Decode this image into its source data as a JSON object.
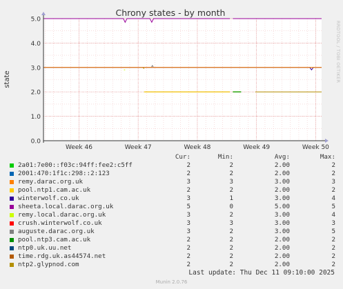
{
  "title": "Chrony states - by month",
  "watermark": "RRDTOOL / TOBI OETIKER",
  "footer": {
    "last_update": "Last update: Thu Dec 11 09:10:00 2025",
    "version": "Munin 2.0.76"
  },
  "legend": {
    "headers": {
      "cur": "Cur:",
      "min": "Min:",
      "avg": "Avg:",
      "max": "Max:"
    },
    "rows": [
      {
        "name": "2a01:7e00::f03c:94ff:fee2:c5ff",
        "color": "#00cc00",
        "cur": "2",
        "min": "2",
        "avg": "2.00",
        "max": "2"
      },
      {
        "name": "2001:470:1f1c:298::2:123",
        "color": "#0066b3",
        "cur": "2",
        "min": "2",
        "avg": "2.00",
        "max": "2"
      },
      {
        "name": "remy.darac.org.uk",
        "color": "#ff8000",
        "cur": "3",
        "min": "3",
        "avg": "3.00",
        "max": "3"
      },
      {
        "name": "pool.ntp1.cam.ac.uk",
        "color": "#ffcc00",
        "cur": "2",
        "min": "2",
        "avg": "2.00",
        "max": "2"
      },
      {
        "name": "winterwolf.co.uk",
        "color": "#330099",
        "cur": "3",
        "min": "1",
        "avg": "3.00",
        "max": "4"
      },
      {
        "name": "sheeta.local.darac.org.uk",
        "color": "#990099",
        "cur": "5",
        "min": "0",
        "avg": "5.00",
        "max": "5"
      },
      {
        "name": "remy.local.darac.org.uk",
        "color": "#ccff00",
        "cur": "3",
        "min": "2",
        "avg": "3.00",
        "max": "4"
      },
      {
        "name": "crush.winterwolf.co.uk",
        "color": "#ff0000",
        "cur": "3",
        "min": "3",
        "avg": "3.00",
        "max": "3"
      },
      {
        "name": "auguste.darac.org.uk",
        "color": "#808080",
        "cur": "3",
        "min": "2",
        "avg": "3.00",
        "max": "5"
      },
      {
        "name": "pool.ntp3.cam.ac.uk",
        "color": "#008f00",
        "cur": "2",
        "min": "2",
        "avg": "2.00",
        "max": "2"
      },
      {
        "name": "ntp0.uk.uu.net",
        "color": "#00487d",
        "cur": "2",
        "min": "2",
        "avg": "2.00",
        "max": "2"
      },
      {
        "name": "time.rdg.uk.as44574.net",
        "color": "#b35a00",
        "cur": "2",
        "min": "2",
        "avg": "2.00",
        "max": "2"
      },
      {
        "name": "ntp2.glypnod.com",
        "color": "#b38f00",
        "cur": "2",
        "min": "2",
        "avg": "2.00",
        "max": "2"
      }
    ]
  },
  "chart_data": {
    "type": "line",
    "title": "Chrony states - by month",
    "ylabel": "state",
    "ylim": [
      0,
      5
    ],
    "yticks": [
      0.0,
      1.0,
      2.0,
      3.0,
      4.0,
      5.0
    ],
    "ytick_labels": [
      "0.0",
      "1.0",
      "2.0",
      "3.0",
      "4.0",
      "5.0"
    ],
    "xlim": [
      45.4,
      50.1
    ],
    "xticks": [
      46,
      47,
      48,
      49,
      50
    ],
    "xtick_labels": [
      "Week 46",
      "Week 47",
      "Week 48",
      "Week 49",
      "Week 50"
    ],
    "grid": true,
    "series": [
      {
        "name": "sheeta.local.darac.org.uk",
        "color": "#990099",
        "segments": [
          [
            [
              45.4,
              5
            ],
            [
              46.75,
              5
            ],
            [
              46.78,
              4.85
            ],
            [
              46.81,
              5
            ],
            [
              47.2,
              5
            ],
            [
              47.23,
              4.85
            ],
            [
              47.26,
              5
            ],
            [
              48.55,
              5
            ]
          ],
          [
            [
              48.6,
              5
            ],
            [
              50.1,
              5
            ]
          ]
        ]
      },
      {
        "name": "winterwolf.co.uk",
        "color": "#330099",
        "segments": [
          [
            [
              45.4,
              3
            ],
            [
              49.9,
              3
            ],
            [
              49.93,
              2.9
            ],
            [
              49.96,
              3
            ],
            [
              50.1,
              3
            ]
          ]
        ]
      },
      {
        "name": "auguste.darac.org.uk",
        "color": "#808080",
        "segments": [
          [
            [
              45.4,
              3
            ],
            [
              47.22,
              3
            ],
            [
              47.24,
              3.08
            ],
            [
              47.26,
              3
            ],
            [
              50.1,
              3
            ]
          ]
        ]
      },
      {
        "name": "remy.darac.org.uk",
        "color": "#ff8000",
        "segments": [
          [
            [
              45.4,
              3
            ],
            [
              50.1,
              3
            ]
          ]
        ]
      },
      {
        "name": "remy.local.darac.org.uk",
        "color": "#ccff00",
        "segments": [
          [
            [
              46.76,
              2.9
            ],
            [
              46.78,
              2.9
            ]
          ]
        ]
      },
      {
        "name": "ntp2.glypnod.com",
        "color": "#b38f00",
        "segments": [
          [
            [
              47.08,
              3
            ],
            [
              47.1,
              2.95
            ]
          ],
          [
            [
              47.1,
              2
            ],
            [
              48.55,
              2
            ]
          ],
          [
            [
              48.6,
              2
            ],
            [
              48.74,
              2
            ]
          ],
          [
            [
              48.98,
              2
            ],
            [
              50.1,
              2
            ]
          ]
        ]
      },
      {
        "name": "pool.ntp1.cam.ac.uk",
        "color": "#ffcc00",
        "segments": [
          [
            [
              47.1,
              2
            ],
            [
              48.55,
              2
            ]
          ],
          [
            [
              48.6,
              2
            ],
            [
              48.74,
              2
            ]
          ]
        ]
      },
      {
        "name": "2a01:7e00::f03c:94ff:fee2:c5ff",
        "color": "#00cc00",
        "segments": [
          [
            [
              48.6,
              2
            ],
            [
              48.74,
              2
            ]
          ]
        ]
      },
      {
        "name": "pool.ntp3.cam.ac.uk",
        "color": "#008f00",
        "segments": [
          [
            [
              48.6,
              2
            ],
            [
              48.74,
              2
            ]
          ]
        ]
      }
    ]
  }
}
